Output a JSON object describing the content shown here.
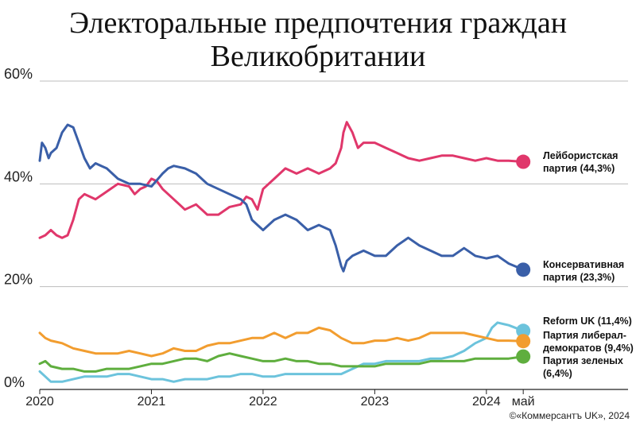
{
  "page": {
    "title_line1": "Электоральные предпочтения граждан",
    "title_line2": "Великобритании",
    "source": "©«Коммерсантъ UK», 2024"
  },
  "chart_data": {
    "type": "line",
    "xlim": [
      2020.0,
      2024.4
    ],
    "ylim": [
      0,
      60
    ],
    "y_ticks": [
      {
        "value": 0,
        "label": "0%"
      },
      {
        "value": 20,
        "label": "20%"
      },
      {
        "value": 40,
        "label": "40%"
      },
      {
        "value": 60,
        "label": "60%"
      }
    ],
    "x_ticks": [
      {
        "value": 2020.0,
        "label": "2020"
      },
      {
        "value": 2021.0,
        "label": "2021"
      },
      {
        "value": 2022.0,
        "label": "2022"
      },
      {
        "value": 2023.0,
        "label": "2023"
      },
      {
        "value": 2024.0,
        "label": "2024"
      },
      {
        "value": 2024.33,
        "label": "май"
      }
    ],
    "grid": "horizontal",
    "series": [
      {
        "name": "Лейбористская партия (44,3%)",
        "label_lines": [
          "Лейбористская",
          "партия (44,3%)"
        ],
        "color": "#e0376b",
        "x": [
          2020.0,
          2020.05,
          2020.1,
          2020.15,
          2020.2,
          2020.25,
          2020.3,
          2020.35,
          2020.4,
          2020.5,
          2020.6,
          2020.7,
          2020.8,
          2020.85,
          2020.9,
          2020.95,
          2021.0,
          2021.05,
          2021.1,
          2021.2,
          2021.25,
          2021.3,
          2021.4,
          2021.5,
          2021.6,
          2021.7,
          2021.8,
          2021.85,
          2021.9,
          2021.95,
          2022.0,
          2022.1,
          2022.2,
          2022.3,
          2022.4,
          2022.5,
          2022.6,
          2022.65,
          2022.7,
          2022.72,
          2022.75,
          2022.8,
          2022.85,
          2022.9,
          2023.0,
          2023.1,
          2023.2,
          2023.3,
          2023.4,
          2023.5,
          2023.6,
          2023.7,
          2023.8,
          2023.9,
          2024.0,
          2024.1,
          2024.2,
          2024.33
        ],
        "values": [
          29.5,
          30,
          31,
          30,
          29.5,
          30,
          33,
          37,
          38,
          37,
          38.5,
          40,
          39.5,
          38,
          39,
          39.5,
          41,
          40.5,
          39,
          37,
          36,
          35,
          36,
          34,
          34,
          35.5,
          36,
          37.5,
          37,
          35,
          39,
          41,
          43,
          42,
          43,
          42,
          43,
          44,
          47,
          50,
          52,
          50,
          47,
          48,
          48,
          47,
          46,
          45,
          44.5,
          45,
          45.5,
          45.5,
          45,
          44.5,
          45,
          44.5,
          44.5,
          44.3
        ]
      },
      {
        "name": "Консервативная партия (23,3%)",
        "label_lines": [
          "Консервативная",
          "партия (23,3%)"
        ],
        "color": "#3a5fa8",
        "x": [
          2020.0,
          2020.02,
          2020.05,
          2020.08,
          2020.1,
          2020.15,
          2020.2,
          2020.25,
          2020.3,
          2020.35,
          2020.4,
          2020.45,
          2020.5,
          2020.6,
          2020.7,
          2020.8,
          2020.9,
          2021.0,
          2021.1,
          2021.15,
          2021.2,
          2021.3,
          2021.4,
          2021.5,
          2021.6,
          2021.7,
          2021.8,
          2021.85,
          2021.9,
          2021.95,
          2022.0,
          2022.1,
          2022.2,
          2022.3,
          2022.4,
          2022.5,
          2022.6,
          2022.65,
          2022.7,
          2022.72,
          2022.75,
          2022.8,
          2022.9,
          2023.0,
          2023.1,
          2023.2,
          2023.3,
          2023.4,
          2023.5,
          2023.6,
          2023.7,
          2023.8,
          2023.9,
          2024.0,
          2024.1,
          2024.2,
          2024.33
        ],
        "values": [
          44.5,
          48,
          47,
          45,
          46,
          47,
          50,
          51.5,
          51,
          48,
          45,
          43,
          44,
          43,
          41,
          40,
          40,
          39.5,
          42,
          43,
          43.5,
          43,
          42,
          40,
          39,
          38,
          37,
          36,
          33,
          32,
          31,
          33,
          34,
          33,
          31,
          32,
          31,
          28,
          24,
          23,
          25,
          26,
          27,
          26,
          26,
          28,
          29.5,
          28,
          27,
          26,
          26,
          27.5,
          26,
          25.5,
          26,
          24.5,
          23.3
        ]
      },
      {
        "name": "Reform UK (11,4%)",
        "label_lines": [
          "Reform UK (11,4%)"
        ],
        "color": "#6cc3dc",
        "x": [
          2020.0,
          2020.05,
          2020.1,
          2020.2,
          2020.3,
          2020.4,
          2020.5,
          2020.6,
          2020.7,
          2020.8,
          2020.9,
          2021.0,
          2021.1,
          2021.2,
          2021.3,
          2021.4,
          2021.5,
          2021.6,
          2021.7,
          2021.8,
          2021.9,
          2022.0,
          2022.1,
          2022.2,
          2022.3,
          2022.4,
          2022.5,
          2022.6,
          2022.7,
          2022.8,
          2022.9,
          2023.0,
          2023.1,
          2023.2,
          2023.3,
          2023.4,
          2023.5,
          2023.6,
          2023.7,
          2023.8,
          2023.9,
          2024.0,
          2024.05,
          2024.1,
          2024.2,
          2024.33
        ],
        "values": [
          3.5,
          2.5,
          1.5,
          1.5,
          2,
          2.5,
          2.5,
          2.5,
          3,
          3,
          2.5,
          2,
          2,
          1.5,
          2,
          2,
          2,
          2.5,
          2.5,
          3,
          3,
          2.5,
          2.5,
          3,
          3,
          3,
          3,
          3,
          3,
          4,
          5,
          5,
          5.5,
          5.5,
          5.5,
          5.5,
          6,
          6,
          6.5,
          7.5,
          9,
          10,
          12,
          13,
          12.5,
          11.4
        ]
      },
      {
        "name": "Партия либерал-демократов (9,4%)",
        "label_lines": [
          "Партия либерал-",
          "демократов (9,4%)"
        ],
        "color": "#f29d2f",
        "x": [
          2020.0,
          2020.05,
          2020.1,
          2020.2,
          2020.3,
          2020.4,
          2020.5,
          2020.6,
          2020.7,
          2020.8,
          2020.9,
          2021.0,
          2021.1,
          2021.2,
          2021.3,
          2021.4,
          2021.5,
          2021.6,
          2021.7,
          2021.8,
          2021.9,
          2022.0,
          2022.1,
          2022.2,
          2022.3,
          2022.4,
          2022.5,
          2022.6,
          2022.7,
          2022.8,
          2022.9,
          2023.0,
          2023.1,
          2023.2,
          2023.3,
          2023.4,
          2023.5,
          2023.6,
          2023.7,
          2023.8,
          2023.9,
          2024.0,
          2024.1,
          2024.2,
          2024.33
        ],
        "values": [
          11,
          10,
          9.5,
          9,
          8,
          7.5,
          7,
          7,
          7,
          7.5,
          7,
          6.5,
          7,
          8,
          7.5,
          7.5,
          8.5,
          9,
          9,
          9.5,
          10,
          10,
          11,
          10,
          11,
          11,
          12,
          11.5,
          10,
          9,
          9,
          9.5,
          9.5,
          10,
          9.5,
          10,
          11,
          11,
          11,
          11,
          10.5,
          10,
          9.5,
          9.5,
          9.4
        ]
      },
      {
        "name": "Партия зеленых (6,4%)",
        "label_lines": [
          "Партия зеленых",
          "(6,4%)"
        ],
        "color": "#5fae3e",
        "x": [
          2020.0,
          2020.05,
          2020.1,
          2020.2,
          2020.3,
          2020.4,
          2020.5,
          2020.6,
          2020.7,
          2020.8,
          2020.9,
          2021.0,
          2021.1,
          2021.2,
          2021.3,
          2021.4,
          2021.5,
          2021.6,
          2021.7,
          2021.8,
          2021.9,
          2022.0,
          2022.1,
          2022.2,
          2022.3,
          2022.4,
          2022.5,
          2022.6,
          2022.7,
          2022.8,
          2022.9,
          2023.0,
          2023.1,
          2023.2,
          2023.3,
          2023.4,
          2023.5,
          2023.6,
          2023.7,
          2023.8,
          2023.9,
          2024.0,
          2024.1,
          2024.2,
          2024.33
        ],
        "values": [
          5,
          5.5,
          4.5,
          4,
          4,
          3.5,
          3.5,
          4,
          4,
          4,
          4.5,
          5,
          5,
          5.5,
          6,
          6,
          5.5,
          6.5,
          7,
          6.5,
          6,
          5.5,
          5.5,
          6,
          5.5,
          5.5,
          5,
          5,
          4.5,
          4.5,
          4.5,
          4.5,
          5,
          5,
          5,
          5,
          5.5,
          5.5,
          5.5,
          5.5,
          6,
          6,
          6,
          6,
          6.4
        ]
      }
    ]
  }
}
